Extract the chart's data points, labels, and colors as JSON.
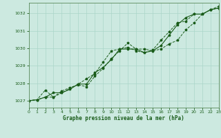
{
  "title": "Graphe pression niveau de la mer (hPa)",
  "bg_color": "#cce9e0",
  "grid_color": "#aad5c8",
  "line_color": "#1a5c1a",
  "xlim": [
    0,
    23
  ],
  "ylim": [
    1026.6,
    1032.6
  ],
  "yticks": [
    1027,
    1028,
    1029,
    1030,
    1031,
    1032
  ],
  "xticks": [
    0,
    1,
    2,
    3,
    4,
    5,
    6,
    7,
    8,
    9,
    10,
    11,
    12,
    13,
    14,
    15,
    16,
    17,
    18,
    19,
    20,
    21,
    22,
    23
  ],
  "series1_x": [
    0,
    1,
    2,
    3,
    4,
    5,
    6,
    7,
    8,
    9,
    10,
    11,
    12,
    13,
    14,
    15,
    16,
    17,
    18,
    19,
    20,
    21,
    22,
    23
  ],
  "series1_y": [
    1027.0,
    1027.05,
    1027.2,
    1027.2,
    1027.55,
    1027.75,
    1027.9,
    1027.8,
    1028.4,
    1028.85,
    1029.4,
    1029.85,
    1030.3,
    1029.95,
    1029.95,
    1029.85,
    1029.95,
    1030.25,
    1030.45,
    1031.05,
    1031.45,
    1031.95,
    1032.2,
    1032.3
  ],
  "series2_x": [
    0,
    1,
    2,
    3,
    4,
    5,
    6,
    7,
    8,
    9,
    10,
    11,
    12,
    13,
    14,
    15,
    16,
    17,
    18,
    19,
    20,
    21,
    22,
    23
  ],
  "series2_y": [
    1027.0,
    1027.05,
    1027.6,
    1027.2,
    1027.45,
    1027.7,
    1027.95,
    1028.25,
    1028.55,
    1029.2,
    1029.85,
    1029.95,
    1030.05,
    1029.85,
    1029.75,
    1029.9,
    1030.45,
    1030.95,
    1031.45,
    1031.55,
    1031.95,
    1031.95,
    1032.2,
    1032.4
  ],
  "series3_x": [
    0,
    1,
    2,
    3,
    4,
    5,
    6,
    7,
    8,
    9,
    10,
    11,
    12,
    13,
    14,
    15,
    16,
    17,
    18,
    19,
    20,
    21,
    22,
    23
  ],
  "series3_y": [
    1027.0,
    1027.05,
    1027.2,
    1027.45,
    1027.45,
    1027.65,
    1027.95,
    1027.95,
    1028.6,
    1028.9,
    1029.35,
    1029.95,
    1029.95,
    1029.95,
    1029.75,
    1029.85,
    1030.15,
    1030.75,
    1031.35,
    1031.75,
    1031.95,
    1031.95,
    1032.2,
    1032.3
  ]
}
